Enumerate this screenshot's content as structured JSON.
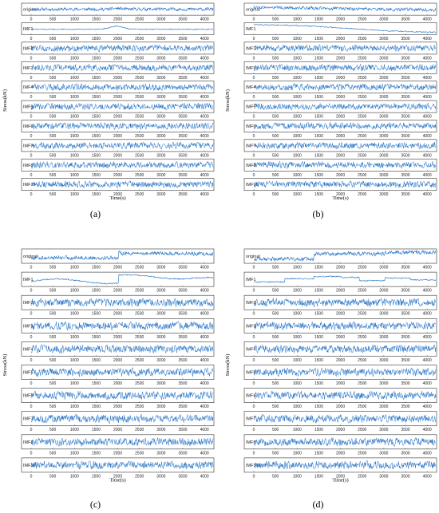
{
  "figure": {
    "panels": [
      {
        "id": "a",
        "label": "(a)"
      },
      {
        "id": "b",
        "label": "(b)"
      },
      {
        "id": "c",
        "label": "(c)"
      },
      {
        "id": "d",
        "label": "(d)"
      }
    ],
    "xlabel": "Time(s)",
    "ylabel": "Stress(kN)",
    "xlim": [
      0,
      4200
    ],
    "xticks": [
      0,
      500,
      1000,
      1500,
      2000,
      2500,
      3000,
      3500,
      4000
    ],
    "rows": [
      "original",
      "IMF1",
      "IMF2",
      "IMF3",
      "IMF4",
      "IMF5",
      "IMF6",
      "IMF7",
      "IMF8",
      "IMF10"
    ],
    "colors": {
      "line": "#1f6fc4",
      "frame": "#333333"
    }
  },
  "chart_data": [
    {
      "type": "line",
      "panel": "(a)",
      "xlabel": "Time(s)",
      "ylabel": "Stress(kN)",
      "xlim": [
        0,
        4200
      ],
      "series": [
        {
          "name": "original",
          "trend": "flat noisy signal with a small bump near 2000"
        },
        {
          "name": "IMF1",
          "trend": "slowly varying, peak near 2000"
        },
        {
          "name": "IMF2",
          "trend": "high-frequency oscillation"
        },
        {
          "name": "IMF3",
          "trend": "high-frequency oscillation"
        },
        {
          "name": "IMF4",
          "trend": "high-frequency oscillation"
        },
        {
          "name": "IMF5",
          "trend": "high-frequency oscillation"
        },
        {
          "name": "IMF6",
          "trend": "high-frequency oscillation"
        },
        {
          "name": "IMF7",
          "trend": "high-frequency oscillation"
        },
        {
          "name": "IMF8",
          "trend": "high-frequency oscillation"
        },
        {
          "name": "IMF10",
          "trend": "high-frequency oscillation"
        }
      ]
    },
    {
      "type": "line",
      "panel": "(b)",
      "xlabel": "Time(s)",
      "ylabel": "Stress(kN)",
      "xlim": [
        0,
        4200
      ],
      "series": [
        {
          "name": "original",
          "trend": "noisy, gently decreasing"
        },
        {
          "name": "IMF1",
          "trend": "decreasing trend from high to low"
        },
        {
          "name": "IMF2",
          "trend": "high-frequency oscillation"
        },
        {
          "name": "IMF3",
          "trend": "high-frequency oscillation"
        },
        {
          "name": "IMF4",
          "trend": "high-frequency oscillation"
        },
        {
          "name": "IMF5",
          "trend": "high-frequency oscillation"
        },
        {
          "name": "IMF6",
          "trend": "high-frequency oscillation"
        },
        {
          "name": "IMF7",
          "trend": "high-frequency oscillation"
        },
        {
          "name": "IMF8",
          "trend": "high-frequency oscillation"
        },
        {
          "name": "IMF10",
          "trend": "high-frequency oscillation"
        }
      ]
    },
    {
      "type": "line",
      "panel": "(c)",
      "xlabel": "Time(s)",
      "ylabel": "Stress(kN)",
      "xlim": [
        0,
        4200
      ],
      "series": [
        {
          "name": "original",
          "trend": "step up near 2000"
        },
        {
          "name": "IMF1",
          "trend": "wavy, step near 2000 then decreasing"
        },
        {
          "name": "IMF2",
          "trend": "high-frequency oscillation"
        },
        {
          "name": "IMF3",
          "trend": "high-frequency oscillation"
        },
        {
          "name": "IMF4",
          "trend": "high-frequency oscillation"
        },
        {
          "name": "IMF5",
          "trend": "high-frequency oscillation"
        },
        {
          "name": "IMF6",
          "trend": "high-frequency oscillation"
        },
        {
          "name": "IMF7",
          "trend": "high-frequency oscillation"
        },
        {
          "name": "IMF8",
          "trend": "high-frequency oscillation"
        },
        {
          "name": "IMF10",
          "trend": "high-frequency oscillation"
        }
      ]
    },
    {
      "type": "line",
      "panel": "(d)",
      "xlabel": "Time(s)",
      "ylabel": "Stress(kN)",
      "xlim": [
        0,
        4200
      ],
      "series": [
        {
          "name": "original",
          "trend": "steps near 1500 and 3000"
        },
        {
          "name": "IMF1",
          "trend": "piecewise steps near 1500, 2500, 3500"
        },
        {
          "name": "IMF2",
          "trend": "high-frequency oscillation"
        },
        {
          "name": "IMF3",
          "trend": "high-frequency oscillation"
        },
        {
          "name": "IMF4",
          "trend": "high-frequency oscillation"
        },
        {
          "name": "IMF5",
          "trend": "high-frequency oscillation"
        },
        {
          "name": "IMF6",
          "trend": "high-frequency oscillation"
        },
        {
          "name": "IMF7",
          "trend": "high-frequency oscillation"
        },
        {
          "name": "IMF8",
          "trend": "high-frequency oscillation"
        },
        {
          "name": "IMF10",
          "trend": "high-frequency oscillation"
        }
      ]
    }
  ]
}
